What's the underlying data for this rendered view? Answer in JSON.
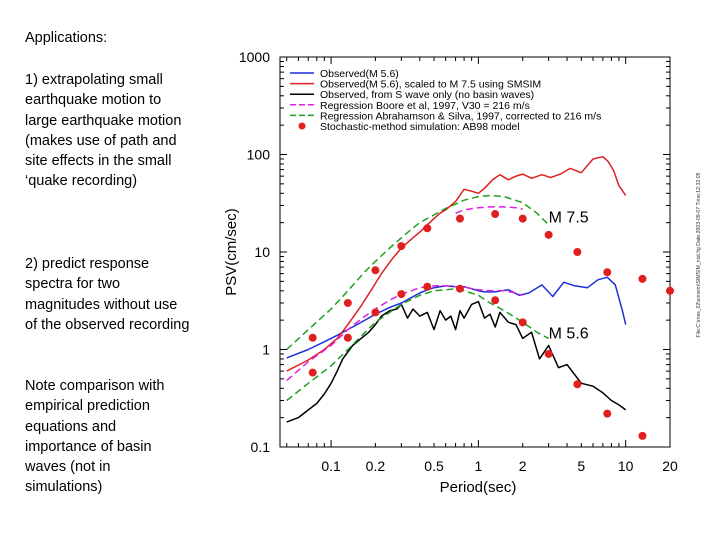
{
  "left_text": {
    "heading": "Applications:",
    "point1": "1) extrapolating small earthquake motion to large earthquake motion (makes use of path and site effects in the small ‘quake recording)",
    "point2": "2) predict response spectra for two magnitudes without use of the observed recording",
    "note": "Note comparison with empirical prediction equations and importance of basin waves (not in simulations)"
  },
  "chart_data": {
    "type": "line",
    "xscale": "log",
    "yscale": "log",
    "xlim": [
      0.045,
      20
    ],
    "ylim": [
      0.1,
      1000
    ],
    "xlabel": "Period(sec)",
    "ylabel": "PSV(cm/sec)",
    "x_ticks": [
      {
        "value": 0.1,
        "label": "0.1"
      },
      {
        "value": 0.2,
        "label": "0.2"
      },
      {
        "value": 0.5,
        "label": "0.5"
      },
      {
        "value": 1,
        "label": "1"
      },
      {
        "value": 2,
        "label": "2"
      },
      {
        "value": 5,
        "label": "5"
      },
      {
        "value": 10,
        "label": "10"
      },
      {
        "value": 20,
        "label": "20"
      }
    ],
    "y_ticks": [
      {
        "value": 0.1,
        "label": "0.1"
      },
      {
        "value": 1,
        "label": "1"
      },
      {
        "value": 10,
        "label": "10"
      },
      {
        "value": 100,
        "label": "100"
      },
      {
        "value": 1000,
        "label": "1000"
      }
    ],
    "legend_position": "top-left",
    "side_stamp": "File:C:\\rnss_02\\simsim\\SIMSIM_nist.fig  Date:2003-09-07 Time:12:32:05",
    "annotations": [
      {
        "text": "M 7.5",
        "x": 3.0,
        "y": 20
      },
      {
        "text": "M 5.6",
        "x": 3.0,
        "y": 1.3
      }
    ],
    "series": [
      {
        "name": "Observed(M 5.6)",
        "style": "solid",
        "color": "#1f2fd6",
        "x": [
          0.05,
          0.07,
          0.09,
          0.11,
          0.14,
          0.17,
          0.2,
          0.25,
          0.3,
          0.35,
          0.4,
          0.45,
          0.5,
          0.6,
          0.7,
          0.8,
          0.9,
          1.0,
          1.1,
          1.3,
          1.6,
          1.9,
          2.2,
          2.7,
          3.2,
          3.8,
          4.5,
          5.5,
          6.5,
          7.5,
          8.5,
          9.5,
          10.0
        ],
        "y": [
          0.82,
          1.0,
          1.2,
          1.4,
          1.7,
          2.0,
          2.3,
          2.7,
          3.0,
          3.4,
          3.8,
          4.1,
          4.3,
          4.5,
          4.4,
          4.4,
          4.2,
          4.0,
          3.9,
          3.9,
          4.1,
          3.6,
          3.8,
          4.6,
          3.5,
          4.9,
          4.5,
          4.3,
          5.2,
          5.5,
          4.6,
          2.5,
          1.8
        ]
      },
      {
        "name": "Observed(M 5.6), scaled to M 7.5 using SMSIM",
        "style": "solid",
        "color": "#e02020",
        "x": [
          0.05,
          0.07,
          0.09,
          0.11,
          0.13,
          0.16,
          0.19,
          0.22,
          0.26,
          0.3,
          0.35,
          0.4,
          0.45,
          0.5,
          0.55,
          0.6,
          0.7,
          0.8,
          0.9,
          1.0,
          1.1,
          1.25,
          1.4,
          1.6,
          1.8,
          2.0,
          2.3,
          2.7,
          3.1,
          3.6,
          4.2,
          5.0,
          6.0,
          7.0,
          7.6,
          8.3,
          9.0,
          10.0
        ],
        "y": [
          0.6,
          0.78,
          1.0,
          1.3,
          1.8,
          2.8,
          4.2,
          6.0,
          8.5,
          11.0,
          13.5,
          16.0,
          19.0,
          22.0,
          25.0,
          27.0,
          33.0,
          44.0,
          42.0,
          40.0,
          45.0,
          55.0,
          62.0,
          55.0,
          60.0,
          63.0,
          57.0,
          62.0,
          58.0,
          63.0,
          72.0,
          65.0,
          90.0,
          95.0,
          85.0,
          68.0,
          48.0,
          38.0
        ]
      },
      {
        "name": "Observed, from S wave only (no basin waves)",
        "style": "solid",
        "color": "#000000",
        "x": [
          0.05,
          0.06,
          0.07,
          0.08,
          0.09,
          0.1,
          0.11,
          0.12,
          0.14,
          0.16,
          0.18,
          0.2,
          0.22,
          0.25,
          0.28,
          0.3,
          0.33,
          0.36,
          0.4,
          0.45,
          0.5,
          0.55,
          0.6,
          0.65,
          0.7,
          0.75,
          0.8,
          0.9,
          1.0,
          1.1,
          1.2,
          1.3,
          1.4,
          1.6,
          1.8,
          2.0,
          2.3,
          2.6,
          3.0,
          3.5,
          4.0,
          5.0,
          6.0,
          7.0,
          8.0,
          9.0,
          10.0
        ],
        "y": [
          0.18,
          0.2,
          0.24,
          0.28,
          0.35,
          0.45,
          0.6,
          0.8,
          1.1,
          1.3,
          1.5,
          1.8,
          2.2,
          2.5,
          2.6,
          2.9,
          2.1,
          2.6,
          2.2,
          2.4,
          1.6,
          2.5,
          2.0,
          2.2,
          1.6,
          2.5,
          2.1,
          2.9,
          3.1,
          2.1,
          2.3,
          1.7,
          2.4,
          1.9,
          1.8,
          1.3,
          1.5,
          0.8,
          1.1,
          0.65,
          0.7,
          0.45,
          0.42,
          0.36,
          0.3,
          0.27,
          0.24
        ]
      },
      {
        "name": "Regression Boore et al, 1997, V30 = 216 m/s",
        "style": "dashed",
        "color": "#e020e0",
        "x": [
          0.05,
          0.07,
          0.1,
          0.13,
          0.17,
          0.2,
          0.25,
          0.3,
          0.35,
          0.4,
          0.5,
          0.6,
          0.7,
          0.8,
          0.9,
          1.0,
          1.2,
          1.5,
          1.8,
          2.0
        ],
        "y": [
          0.48,
          0.75,
          1.1,
          1.6,
          2.2,
          2.6,
          3.2,
          3.7,
          4.0,
          4.3,
          4.5,
          4.5,
          4.4,
          4.4,
          4.2,
          4.1,
          4.0,
          4.0,
          3.8,
          3.6
        ]
      },
      {
        "name": "Regression Boore et al, 1997, V30 = 216 m/s (M 7.5)",
        "style": "dashed",
        "color": "#e020e0",
        "x": [
          0.7,
          0.8,
          1.0,
          1.2,
          1.5,
          1.8,
          2.0
        ],
        "y": [
          25.0,
          27.0,
          28.5,
          29.0,
          29.0,
          28.5,
          27.5
        ]
      },
      {
        "name": "Regression Abrahamson & Silva, 1997, corrected to 216 m/s",
        "style": "dashed",
        "color": "#20a020",
        "x": [
          0.05,
          0.07,
          0.1,
          0.13,
          0.17,
          0.2,
          0.25,
          0.3,
          0.4,
          0.5,
          0.6,
          0.7,
          0.8,
          1.0,
          1.2,
          1.5,
          2.0,
          2.5,
          3.0
        ],
        "y": [
          0.3,
          0.45,
          0.68,
          1.0,
          1.5,
          1.9,
          2.4,
          2.9,
          3.6,
          4.0,
          4.1,
          4.2,
          4.0,
          3.6,
          3.0,
          2.5,
          1.9,
          1.5,
          1.3
        ]
      },
      {
        "name": "Regression Abrahamson & Silva, 1997, corrected to 216 m/s (M 7.5)",
        "style": "dashed",
        "color": "#20a020",
        "x": [
          0.05,
          0.07,
          0.1,
          0.13,
          0.17,
          0.2,
          0.25,
          0.3,
          0.35,
          0.4,
          0.5,
          0.6,
          0.7,
          0.8,
          1.0,
          1.2,
          1.5,
          2.0,
          2.5,
          3.0
        ],
        "y": [
          1.0,
          1.6,
          2.6,
          4.0,
          6.3,
          8.0,
          11.0,
          14.0,
          17.0,
          20.0,
          24.0,
          28.0,
          31.0,
          34.0,
          37.0,
          38.0,
          37.0,
          32.0,
          25.0,
          19.0
        ]
      },
      {
        "name": "Stochastic-method simulation: AB98 model",
        "style": "markers",
        "color": "#e02020",
        "x": [
          0.075,
          0.13,
          0.2,
          0.3,
          0.45,
          0.75,
          1.3,
          2.0,
          3.0,
          4.7,
          7.5,
          13.0,
          20.0
        ],
        "y": [
          1.32,
          3.0,
          6.5,
          11.5,
          17.5,
          22.0,
          24.5,
          22.0,
          15.0,
          10.0,
          6.2,
          5.3,
          4.0
        ]
      },
      {
        "name": "Stochastic-method simulation: AB98 model (M 5.6)",
        "style": "markers",
        "color": "#e02020",
        "x": [
          0.075,
          0.13,
          0.2,
          0.3,
          0.45,
          0.75,
          1.3,
          2.0,
          3.0,
          4.7,
          7.5,
          13.0
        ],
        "y": [
          0.58,
          1.32,
          2.4,
          3.7,
          4.4,
          4.2,
          3.2,
          1.9,
          0.9,
          0.44,
          0.22,
          0.13
        ]
      }
    ],
    "legend": [
      {
        "label": "Observed(M 5.6)",
        "style": "solid",
        "color": "#1f2fd6"
      },
      {
        "label": "Observed(M 5.6), scaled to M 7.5 using SMSIM",
        "style": "solid",
        "color": "#e02020"
      },
      {
        "label": "Observed, from S wave only (no basin waves)",
        "style": "solid",
        "color": "#000000"
      },
      {
        "label": "Regression Boore et al, 1997, V30 = 216 m/s",
        "style": "dashed",
        "color": "#e020e0"
      },
      {
        "label": "Regression Abrahamson & Silva, 1997, corrected to 216 m/s",
        "style": "dashed",
        "color": "#20a020"
      },
      {
        "label": "Stochastic-method simulation: AB98 model",
        "style": "marker",
        "color": "#e02020"
      }
    ]
  }
}
